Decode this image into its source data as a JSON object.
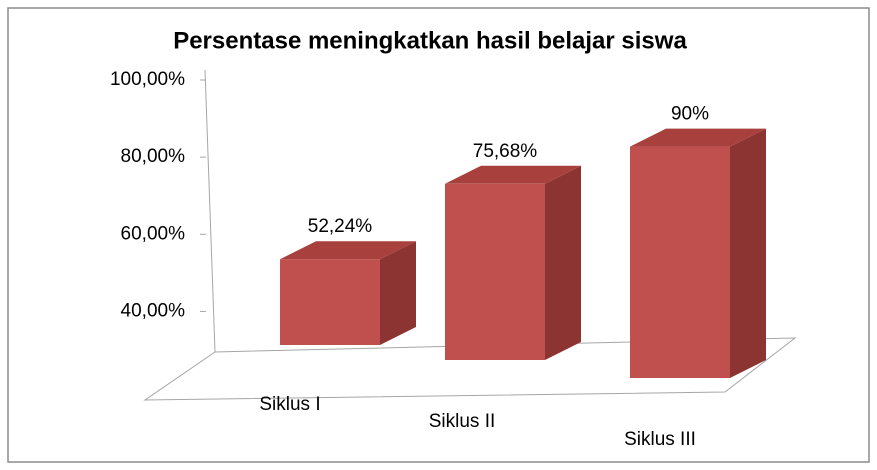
{
  "chart_data": {
    "type": "bar3d",
    "title": "Persentase meningkatkan hasil belajar siswa",
    "categories": [
      "Siklus I",
      "Siklus II",
      "Siklus III"
    ],
    "values": [
      52.24,
      75.68,
      90
    ],
    "value_labels": [
      "52,24%",
      "75,68%",
      "90%"
    ],
    "color": "#c0504d",
    "ylim": [
      30,
      100
    ],
    "yticks": [
      {
        "value": 40,
        "label": "40,00%"
      },
      {
        "value": 60,
        "label": "60,00%"
      },
      {
        "value": 80,
        "label": "80,00%"
      },
      {
        "value": 100,
        "label": "100,00%"
      }
    ]
  }
}
